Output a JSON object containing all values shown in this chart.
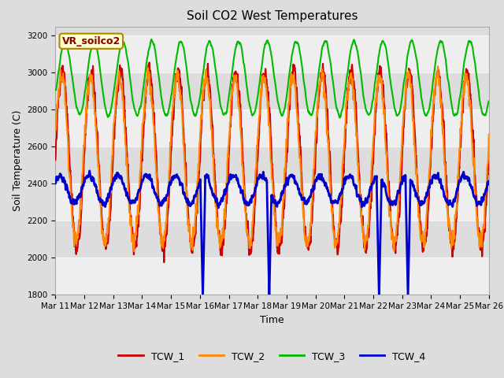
{
  "title": "Soil CO2 West Temperatures",
  "ylabel": "Soil Temperature (C)",
  "xlabel": "Time",
  "annotation": "VR_soilco2",
  "ylim": [
    1800,
    3250
  ],
  "yticks": [
    1800,
    2000,
    2200,
    2400,
    2600,
    2800,
    3000,
    3200
  ],
  "xtick_labels": [
    "Mar 11",
    "Mar 12",
    "Mar 13",
    "Mar 14",
    "Mar 15",
    "Mar 16",
    "Mar 17",
    "Mar 18",
    "Mar 19",
    "Mar 20",
    "Mar 21",
    "Mar 22",
    "Mar 23",
    "Mar 24",
    "Mar 25",
    "Mar 26"
  ],
  "line_colors": {
    "TCW_1": "#cc0000",
    "TCW_2": "#ff8800",
    "TCW_3": "#00bb00",
    "TCW_4": "#0000cc"
  },
  "line_widths": {
    "TCW_1": 1.5,
    "TCW_2": 1.5,
    "TCW_3": 1.5,
    "TCW_4": 2.0
  },
  "bg_color": "#dddddd",
  "plot_bg": "#dddddd",
  "band_colors_odd": "#dddddd",
  "band_colors_even": "#eeeeee",
  "title_fontsize": 11,
  "axis_fontsize": 9,
  "tick_fontsize": 7.5,
  "annotation_fontsize": 9
}
